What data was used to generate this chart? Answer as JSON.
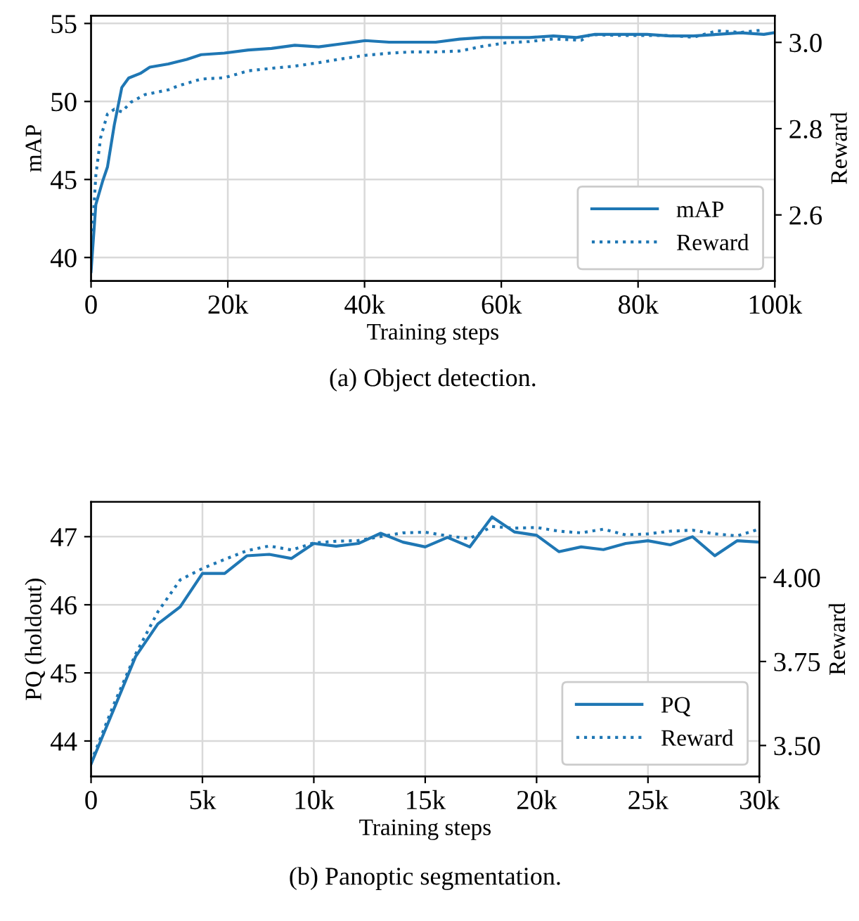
{
  "chart_data": [
    {
      "type": "line",
      "xlabel": "Training steps",
      "ylabel": "mAP",
      "y2label": "Reward",
      "annotations": [
        "(a) Object detection."
      ],
      "xlim": [
        0,
        100000
      ],
      "xticks": [
        {
          "value": 0,
          "label": "0"
        },
        {
          "value": 20000,
          "label": "20k"
        },
        {
          "value": 40000,
          "label": "40k"
        },
        {
          "value": 60000,
          "label": "60k"
        },
        {
          "value": 80000,
          "label": "80k"
        },
        {
          "value": 100000,
          "label": "100k"
        }
      ],
      "ylim": [
        38.5,
        55.5
      ],
      "yticks": [
        40,
        45,
        50,
        55
      ],
      "y2lim": [
        2.447,
        3.062
      ],
      "y2ticks": [
        2.6,
        2.8,
        {
          "value": 3.0,
          "label": "3.0"
        }
      ],
      "grid": true,
      "legend": "bottom right",
      "series": [
        {
          "name": "mAP",
          "color": "#1f77b4",
          "line_style": "solid",
          "x": [
            0,
            700,
            1700,
            2400,
            3400,
            4500,
            5500,
            7200,
            8600,
            11300,
            14000,
            16100,
            19500,
            23000,
            26400,
            29800,
            33300,
            36700,
            40100,
            43600,
            47000,
            50400,
            53900,
            57300,
            60700,
            64100,
            67600,
            71000,
            73700,
            77800,
            81300,
            84700,
            88100,
            91600,
            95000,
            98400,
            99800
          ],
          "values": [
            39.1,
            43.4,
            44.9,
            45.8,
            48.5,
            50.9,
            51.5,
            51.8,
            52.2,
            52.4,
            52.7,
            53.0,
            53.1,
            53.3,
            53.4,
            53.6,
            53.5,
            53.7,
            53.9,
            53.8,
            53.8,
            53.8,
            54.0,
            54.1,
            54.1,
            54.1,
            54.2,
            54.1,
            54.3,
            54.3,
            54.3,
            54.2,
            54.2,
            54.3,
            54.4,
            54.3,
            54.4
          ]
        },
        {
          "name": "Reward",
          "color": "#1f77b4",
          "line_style": "dotted",
          "axis": "y2",
          "x": [
            200,
            700,
            1400,
            2400,
            3400,
            4500,
            5800,
            7900,
            11300,
            12700,
            16100,
            19500,
            23000,
            26400,
            29800,
            33300,
            36700,
            40100,
            43600,
            47000,
            50400,
            53900,
            57300,
            60700,
            64100,
            67600,
            71700,
            73000,
            77800,
            81300,
            84700,
            88100,
            91600,
            95000,
            98400
          ],
          "values": [
            2.562,
            2.692,
            2.779,
            2.834,
            2.845,
            2.839,
            2.861,
            2.879,
            2.89,
            2.899,
            2.915,
            2.918,
            2.934,
            2.94,
            2.945,
            2.953,
            2.962,
            2.97,
            2.975,
            2.978,
            2.978,
            2.98,
            2.991,
            2.999,
            3.002,
            3.008,
            3.005,
            3.018,
            3.016,
            3.016,
            3.016,
            3.012,
            3.027,
            3.023,
            3.029
          ]
        }
      ]
    },
    {
      "type": "line",
      "xlabel": "Training steps",
      "ylabel": "PQ (holdout)",
      "y2label": "Reward",
      "annotations": [
        "(b) Panoptic segmentation."
      ],
      "xlim": [
        0,
        30000
      ],
      "xticks": [
        {
          "value": 0,
          "label": "0"
        },
        {
          "value": 5000,
          "label": "5k"
        },
        {
          "value": 10000,
          "label": "10k"
        },
        {
          "value": 15000,
          "label": "15k"
        },
        {
          "value": 20000,
          "label": "20k"
        },
        {
          "value": 25000,
          "label": "25k"
        },
        {
          "value": 30000,
          "label": "30k"
        }
      ],
      "ylim": [
        43.48,
        47.51
      ],
      "yticks": [
        44,
        45,
        46,
        47
      ],
      "y2lim": [
        3.408,
        4.225
      ],
      "y2ticks": [
        {
          "value": 3.5,
          "label": "3.50"
        },
        {
          "value": 3.75,
          "label": "3.75"
        },
        {
          "value": 4.0,
          "label": "4.00"
        }
      ],
      "grid": true,
      "legend": "bottom right",
      "x": [
        0,
        1000,
        2000,
        3000,
        4000,
        5000,
        6000,
        7000,
        8000,
        9000,
        10000,
        11000,
        12000,
        13000,
        14000,
        15000,
        16000,
        17000,
        18000,
        19000,
        20000,
        21000,
        22000,
        23000,
        24000,
        25000,
        26000,
        27000,
        28000,
        29000,
        30000
      ],
      "series": [
        {
          "name": "PQ",
          "color": "#1f77b4",
          "line_style": "solid",
          "values": [
            43.66,
            44.45,
            45.24,
            45.72,
            45.97,
            46.46,
            46.46,
            46.72,
            46.74,
            46.68,
            46.9,
            46.86,
            46.9,
            47.05,
            46.92,
            46.85,
            46.99,
            46.85,
            47.29,
            47.07,
            47.02,
            46.78,
            46.85,
            46.81,
            46.9,
            46.94,
            46.88,
            47.0,
            46.72,
            46.94,
            46.92
          ]
        },
        {
          "name": "Reward",
          "color": "#1f77b4",
          "line_style": "dotted",
          "axis": "y2",
          "values": [
            3.451,
            3.619,
            3.772,
            3.898,
            3.993,
            4.027,
            4.054,
            4.08,
            4.094,
            4.082,
            4.103,
            4.108,
            4.11,
            4.122,
            4.133,
            4.135,
            4.124,
            4.116,
            4.152,
            4.147,
            4.149,
            4.138,
            4.133,
            4.144,
            4.127,
            4.13,
            4.138,
            4.141,
            4.13,
            4.124,
            4.144
          ]
        }
      ]
    }
  ]
}
